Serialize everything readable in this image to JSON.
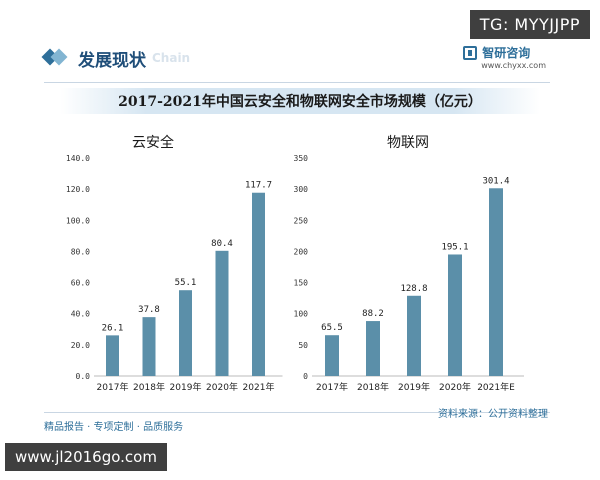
{
  "watermark_badge": "TG: MYYJJPP",
  "header": {
    "title": "发展现状",
    "subtitle": "Chain"
  },
  "logo": {
    "name": "智研咨询",
    "url": "www.chyxx.com"
  },
  "main_title": "2017-2021年中国云安全和物联网安全市场规模（亿元）",
  "chart_data": [
    {
      "type": "bar",
      "title": "云安全",
      "categories": [
        "2017年",
        "2018年",
        "2019年",
        "2020年",
        "2021年"
      ],
      "values": [
        26.1,
        37.8,
        55.1,
        80.4,
        117.7
      ],
      "value_labels": [
        "26.1",
        "37.8",
        "55.1",
        "80.4",
        "117.7"
      ],
      "ylim": [
        0,
        140
      ],
      "yticks": [
        "0.0",
        "20.0",
        "40.0",
        "60.0",
        "80.0",
        "100.0",
        "120.0",
        "140.0"
      ],
      "color": "#5b8fa9"
    },
    {
      "type": "bar",
      "title": "物联网",
      "categories": [
        "2017年",
        "2018年",
        "2019年",
        "2020年",
        "2021年E"
      ],
      "values": [
        65.5,
        88.2,
        128.8,
        195.1,
        301.4
      ],
      "value_labels": [
        "65.5",
        "88.2",
        "128.8",
        "195.1",
        "301.4"
      ],
      "ylim": [
        0,
        350
      ],
      "yticks": [
        "0",
        "50",
        "100",
        "150",
        "200",
        "250",
        "300",
        "350"
      ],
      "color": "#5b8fa9"
    }
  ],
  "footer": {
    "left": "精品报告 · 专项定制 · 品质服务",
    "source": "资料来源：公开资料整理"
  },
  "url_badge": "www.jl2016go.com"
}
